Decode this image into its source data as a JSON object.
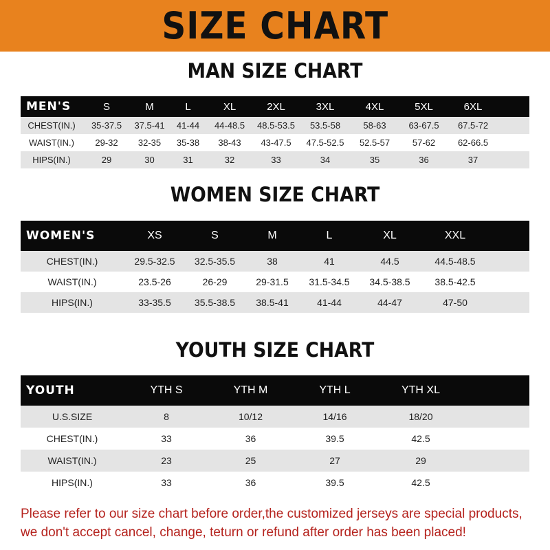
{
  "banner_title": "SIZE CHART",
  "colors": {
    "banner": "#E8821E",
    "header_row": "#0a0a0a",
    "stripe": "#e4e4e4",
    "note": "#B5231E"
  },
  "men": {
    "title": "MAN SIZE CHART",
    "header": [
      "MEN'S",
      "S",
      "M",
      "L",
      "XL",
      "2XL",
      "3XL",
      "4XL",
      "5XL",
      "6XL"
    ],
    "rows": [
      [
        "CHEST(IN.)",
        "35-37.5",
        "37.5-41",
        "41-44",
        "44-48.5",
        "48.5-53.5",
        "53.5-58",
        "58-63",
        "63-67.5",
        "67.5-72"
      ],
      [
        "WAIST(IN.)",
        "29-32",
        "32-35",
        "35-38",
        "38-43",
        "43-47.5",
        "47.5-52.5",
        "52.5-57",
        "57-62",
        "62-66.5"
      ],
      [
        "HIPS(IN.)",
        "29",
        "30",
        "31",
        "32",
        "33",
        "34",
        "35",
        "36",
        "37"
      ]
    ]
  },
  "women": {
    "title": "WOMEN SIZE CHART",
    "header": [
      "WOMEN'S",
      "XS",
      "S",
      "M",
      "L",
      "XL",
      "XXL"
    ],
    "rows": [
      [
        "CHEST(IN.)",
        "29.5-32.5",
        "32.5-35.5",
        "38",
        "41",
        "44.5",
        "44.5-48.5"
      ],
      [
        "WAIST(IN.)",
        "23.5-26",
        "26-29",
        "29-31.5",
        "31.5-34.5",
        "34.5-38.5",
        "38.5-42.5"
      ],
      [
        "HIPS(IN.)",
        "33-35.5",
        "35.5-38.5",
        "38.5-41",
        "41-44",
        "44-47",
        "47-50"
      ]
    ]
  },
  "youth": {
    "title": "YOUTH SIZE CHART",
    "header": [
      "YOUTH",
      "YTH S",
      "YTH M",
      "YTH L",
      "YTH XL"
    ],
    "rows": [
      [
        "U.S.SIZE",
        "8",
        "10/12",
        "14/16",
        "18/20"
      ],
      [
        "CHEST(IN.)",
        "33",
        "36",
        "39.5",
        "42.5"
      ],
      [
        "WAIST(IN.)",
        "23",
        "25",
        "27",
        "29"
      ],
      [
        "HIPS(IN.)",
        "33",
        "36",
        "39.5",
        "42.5"
      ]
    ]
  },
  "note": {
    "line1": "Please refer to our size chart before order,the customized jerseys are special products,",
    "line2": "we don't accept cancel, change, teturn or refund after order has been placed!"
  }
}
